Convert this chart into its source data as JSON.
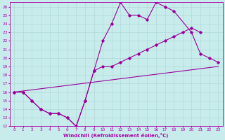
{
  "xlabel": "Windchill (Refroidissement éolien,°C)",
  "bg_color": "#c8ecec",
  "grid_color": "#b0d8d8",
  "line_color": "#990099",
  "xlim": [
    -0.5,
    23.5
  ],
  "ylim": [
    12,
    26.5
  ],
  "xticks": [
    0,
    1,
    2,
    3,
    4,
    5,
    6,
    7,
    8,
    9,
    10,
    11,
    12,
    13,
    14,
    15,
    16,
    17,
    18,
    19,
    20,
    21,
    22,
    23
  ],
  "yticks": [
    12,
    13,
    14,
    15,
    16,
    17,
    18,
    19,
    20,
    21,
    22,
    23,
    24,
    25,
    26
  ],
  "line1_x": [
    0,
    1,
    2,
    3,
    4,
    5,
    6,
    7,
    8,
    9,
    10,
    11,
    12,
    13,
    14,
    15,
    16,
    17,
    18,
    20,
    21,
    22,
    23
  ],
  "line1_y": [
    16,
    16,
    15,
    14,
    13.5,
    13.5,
    13,
    12,
    15,
    18.5,
    22,
    24,
    26.5,
    25,
    25,
    24.5,
    26.5,
    26,
    25.5,
    23,
    20.5,
    20,
    19.5
  ],
  "line2_x": [
    0,
    1,
    2,
    3,
    4,
    5,
    6,
    7,
    8,
    9,
    10,
    11,
    12,
    13,
    14,
    15,
    16,
    17,
    18,
    19,
    20,
    21
  ],
  "line2_y": [
    16,
    16,
    15,
    14,
    13.5,
    13.5,
    13,
    12,
    15,
    18.5,
    19,
    19,
    19.5,
    20,
    20.5,
    21,
    21.5,
    22,
    22.5,
    23,
    23.5,
    23
  ],
  "line3_x": [
    0,
    23
  ],
  "line3_y": [
    16,
    19
  ]
}
